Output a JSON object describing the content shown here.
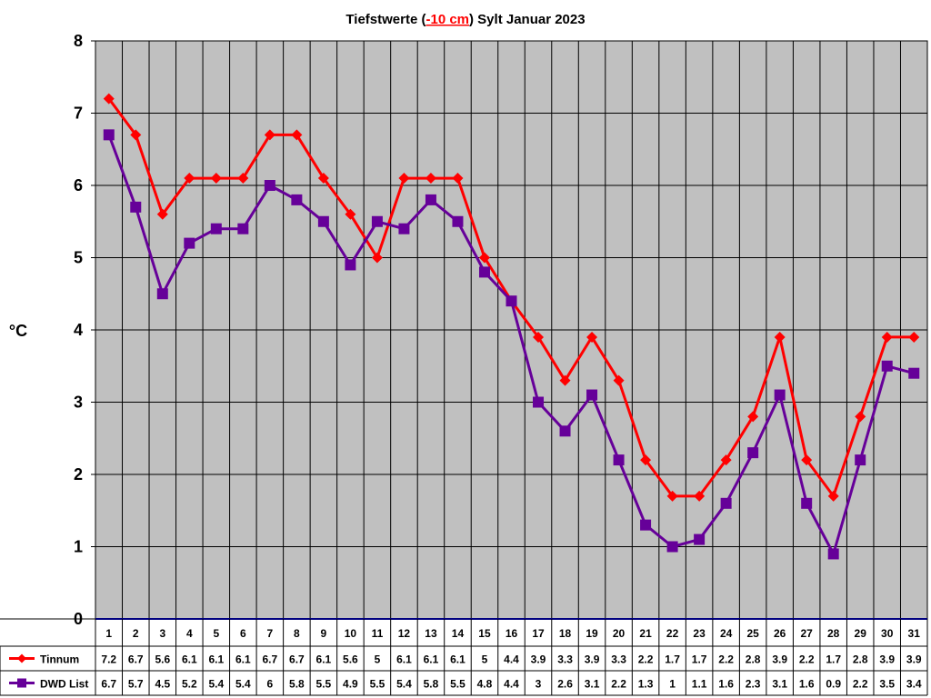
{
  "chart_data": {
    "type": "line",
    "title": {
      "prefix": "Tiefstwerte (",
      "highlight": "-10 cm",
      "suffix": ") Sylt Januar 2023"
    },
    "ylabel": "°C",
    "ylim": [
      0,
      8
    ],
    "yticks": [
      "0",
      "1",
      "2",
      "3",
      "4",
      "5",
      "6",
      "7",
      "8"
    ],
    "x": [
      "1",
      "2",
      "3",
      "4",
      "5",
      "6",
      "7",
      "8",
      "9",
      "10",
      "11",
      "12",
      "13",
      "14",
      "15",
      "16",
      "17",
      "18",
      "19",
      "20",
      "21",
      "22",
      "23",
      "24",
      "25",
      "26",
      "27",
      "28",
      "29",
      "30",
      "31"
    ],
    "grid": true,
    "legend_placement": "bottom-left data table",
    "series": [
      {
        "name": "Tinnum",
        "color": "#ff0000",
        "marker": "diamond",
        "values": [
          7.2,
          6.7,
          5.6,
          6.1,
          6.1,
          6.1,
          6.7,
          6.7,
          6.1,
          5.6,
          5,
          6.1,
          6.1,
          6.1,
          5,
          4.4,
          3.9,
          3.3,
          3.9,
          3.3,
          2.2,
          1.7,
          1.7,
          2.2,
          2.8,
          3.9,
          2.2,
          1.7,
          2.8,
          3.9,
          3.9
        ]
      },
      {
        "name": "DWD List",
        "color": "#660099",
        "marker": "square",
        "values": [
          6.7,
          5.7,
          4.5,
          5.2,
          5.4,
          5.4,
          6,
          5.8,
          5.5,
          4.9,
          5.5,
          5.4,
          5.8,
          5.5,
          4.8,
          4.4,
          3,
          2.6,
          3.1,
          2.2,
          1.3,
          1,
          1.1,
          1.6,
          2.3,
          3.1,
          1.6,
          0.9,
          2.2,
          3.5,
          3.4
        ]
      }
    ],
    "colors": {
      "plot_background": "#c0c0c0",
      "title_highlight": "#ff0000",
      "zero_axis": "#0000ff"
    }
  }
}
